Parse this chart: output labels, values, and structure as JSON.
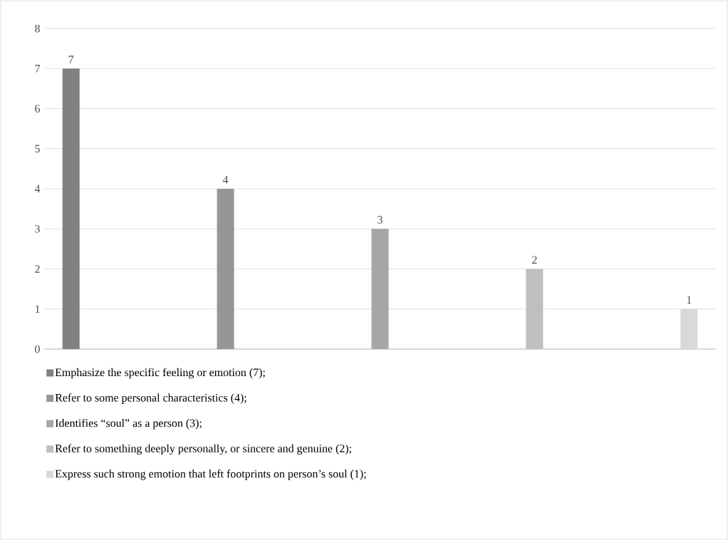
{
  "chart_data": {
    "type": "bar",
    "categories": [
      null
    ],
    "series": [
      {
        "name": "Emphasize the specific feeling or emotion (7);",
        "color": "#808080",
        "values": [
          7
        ]
      },
      {
        "name": "Refer to some personal characteristics (4);",
        "color": "#969696",
        "values": [
          4
        ]
      },
      {
        "name": "Identifies “soul” as a person (3);",
        "color": "#a6a6a6",
        "values": [
          3
        ]
      },
      {
        "name": "Refer to something deeply personally, or sincere and genuine (2);",
        "color": "#bfbfbf",
        "values": [
          2
        ]
      },
      {
        "name": "Express such strong emotion that left footprints on person’s soul (1);",
        "color": "#d9d9d9",
        "values": [
          1
        ]
      }
    ],
    "ylim": [
      0,
      8
    ],
    "yticks": [
      0,
      1,
      2,
      3,
      4,
      5,
      6,
      7,
      8
    ],
    "grid": "y",
    "legend": "bottom",
    "data_labels": true
  }
}
